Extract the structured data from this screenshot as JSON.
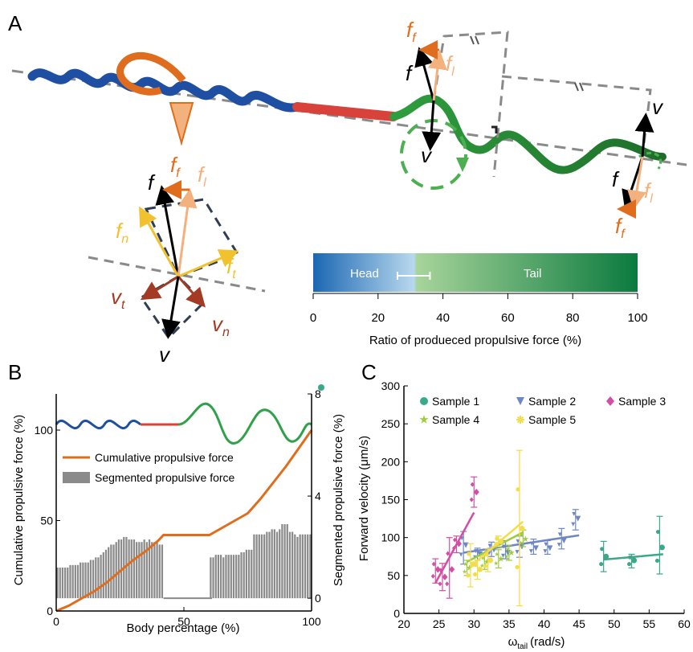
{
  "panels": {
    "a": "A",
    "b": "B",
    "c": "C"
  },
  "colors": {
    "orange": "#e06d1d",
    "light_orange": "#f3b17e",
    "yellow": "#f2c12e",
    "brown": "#a33a24",
    "blue": "#1f4fa3",
    "red": "#d8423a",
    "green": "#4caf50",
    "gray": "#8a8a8a"
  },
  "panel_a": {
    "labels": {
      "ff": "f",
      "ff_sub": "f",
      "fl": "f",
      "fl_sub": "l",
      "f": "f",
      "v": "v",
      "fn": "f",
      "fn_sub": "n",
      "ft": "f",
      "ft_sub": "t",
      "vt": "v",
      "vt_sub": "t",
      "vn": "v",
      "vn_sub": "n"
    },
    "colorbar": {
      "head_label": "Head",
      "tail_label": "Tail",
      "ticks": [
        "0",
        "20",
        "40",
        "60",
        "80",
        "100"
      ],
      "xlabel": "Ratio of produeced propulsive force (%)",
      "boundary": 31,
      "error": [
        26,
        36
      ]
    }
  },
  "chart_data": [
    {
      "type": "line",
      "panel": "B",
      "xlabel": "Body percentage (%)",
      "ylabel": "Cumulative propulsive force (%)",
      "y2label": "Segmented propulsive force (%)",
      "xlim": [
        0,
        100
      ],
      "ylim": [
        0,
        120
      ],
      "y2lim": [
        -0.5,
        8
      ],
      "xticks": [
        "0",
        "50",
        "100"
      ],
      "yticks": [
        "0",
        "50",
        "100"
      ],
      "y2ticks": [
        "0",
        "4",
        "8"
      ],
      "legend": [
        "Cumulative propulsive force",
        "Segmented propulsive force"
      ],
      "legend_position": "center-left",
      "series": [
        {
          "name": "Cumulative propulsive force",
          "x": [
            0,
            5,
            10,
            15,
            20,
            25,
            30,
            35,
            40,
            42,
            45,
            50,
            55,
            60,
            65,
            70,
            75,
            80,
            85,
            90,
            95,
            100
          ],
          "values": [
            0,
            3,
            7,
            11,
            16,
            22,
            28,
            33,
            39,
            42,
            42,
            42,
            42,
            42,
            46,
            50,
            54,
            62,
            71,
            80,
            90,
            100
          ]
        },
        {
          "name": "Segmented propulsive force",
          "x": [
            1,
            2,
            3,
            4,
            5,
            6,
            7,
            8,
            9,
            10,
            11,
            12,
            13,
            14,
            15,
            16,
            17,
            18,
            19,
            20,
            21,
            22,
            23,
            24,
            25,
            26,
            27,
            28,
            29,
            30,
            31,
            32,
            33,
            34,
            35,
            36,
            37,
            38,
            39,
            40,
            41,
            42,
            61,
            62,
            63,
            64,
            65,
            66,
            67,
            68,
            69,
            70,
            71,
            72,
            73,
            74,
            75,
            76,
            77,
            78,
            79,
            80,
            81,
            82,
            83,
            84,
            85,
            86,
            87,
            88,
            89,
            90,
            91,
            92,
            93,
            94,
            95,
            96,
            97,
            98,
            99,
            100
          ],
          "values": [
            1.2,
            1.2,
            1.2,
            1.2,
            1.2,
            1.3,
            1.3,
            1.3,
            1.3,
            1.4,
            1.4,
            1.4,
            1.4,
            1.5,
            1.5,
            1.6,
            1.6,
            1.7,
            1.8,
            1.9,
            2.0,
            2.1,
            2.1,
            2.2,
            2.3,
            2.3,
            2.4,
            2.4,
            2.3,
            2.3,
            2.3,
            2.2,
            2.2,
            2.2,
            2.3,
            2.2,
            2.3,
            2.2,
            2.2,
            2.2,
            2.1,
            2.1,
            1.6,
            1.6,
            1.7,
            1.7,
            1.7,
            1.6,
            1.7,
            1.7,
            1.7,
            1.7,
            1.7,
            1.7,
            1.8,
            1.8,
            1.9,
            1.9,
            1.9,
            2.5,
            2.5,
            2.5,
            2.5,
            2.5,
            2.6,
            2.6,
            2.7,
            2.7,
            2.6,
            2.7,
            2.9,
            2.9,
            2.9,
            2.6,
            2.6,
            2.5,
            2.4,
            2.5,
            2.5,
            2.5,
            2.5,
            2.5
          ]
        }
      ]
    },
    {
      "type": "scatter",
      "panel": "C",
      "xlabel": "ω",
      "xlabel_sub": "tail",
      "xlabel_unit": "(rad/s)",
      "ylabel": "Forward velocity (μm/s)",
      "xlim": [
        20,
        60
      ],
      "ylim": [
        0,
        300
      ],
      "xticks": [
        "20",
        "25",
        "30",
        "35",
        "40",
        "45",
        "50",
        "55",
        "60"
      ],
      "yticks": [
        "0",
        "50",
        "100",
        "150",
        "200",
        "250",
        "300"
      ],
      "legend_position": "top",
      "series": [
        {
          "name": "Sample 1",
          "color": "#3aa889",
          "marker": "circle",
          "x": [
            48.5,
            52.5,
            56.5
          ],
          "values": [
            75,
            70,
            87
          ],
          "err": [
            [
              55,
              95
            ],
            [
              60,
              78
            ],
            [
              52,
              128
            ]
          ],
          "fit": [
            [
              48.5,
              71
            ],
            [
              57,
              78
            ]
          ]
        },
        {
          "name": "Sample 2",
          "color": "#6e87c4",
          "marker": "triangle",
          "x": [
            28.5,
            30.5,
            32.5,
            34.5,
            36.5,
            38.5,
            40.5,
            42.5,
            44.5
          ],
          "values": [
            90,
            78,
            84,
            80,
            88,
            86,
            86,
            96,
            125
          ],
          "err": [
            [
              65,
              108
            ],
            [
              70,
              86
            ],
            [
              75,
              94
            ],
            [
              72,
              96
            ],
            [
              74,
              102
            ],
            [
              78,
              98
            ],
            [
              78,
              96
            ],
            [
              85,
              112
            ],
            [
              110,
              137
            ]
          ],
          "fit": [
            [
              28.5,
              80
            ],
            [
              45,
              103
            ]
          ]
        },
        {
          "name": "Sample 3",
          "color": "#d14fa5",
          "marker": "diamond",
          "x": [
            24.5,
            25.5,
            26.5,
            27.5,
            30
          ],
          "values": [
            58,
            48,
            58,
            92,
            160
          ],
          "err": [
            [
              40,
              72
            ],
            [
              30,
              66
            ],
            [
              20,
              100
            ],
            [
              80,
              102
            ],
            [
              140,
              180
            ]
          ],
          "fit": [
            [
              24.5,
              40
            ],
            [
              30,
              133
            ]
          ]
        },
        {
          "name": "Sample 4",
          "color": "#9ccc3a",
          "marker": "star",
          "x": [
            29,
            31.5,
            33.5,
            35,
            37
          ],
          "values": [
            60,
            68,
            72,
            80,
            98
          ],
          "err": [
            [
              50,
              70
            ],
            [
              58,
              78
            ],
            [
              60,
              84
            ],
            [
              70,
              90
            ],
            [
              88,
              110
            ]
          ],
          "fit": [
            [
              29,
              68
            ],
            [
              37,
              107
            ]
          ]
        },
        {
          "name": "Sample 5",
          "color": "#f2dd4a",
          "marker": "asterisk",
          "x": [
            29.5,
            30.5,
            32,
            33.5,
            36.5
          ],
          "values": [
            65,
            58,
            70,
            95,
            112
          ],
          "err": [
            [
              35,
              92
            ],
            [
              45,
              70
            ],
            [
              55,
              85
            ],
            [
              88,
              102
            ],
            [
              10,
              215
            ]
          ],
          "fit": [
            [
              29.5,
              62
            ],
            [
              37,
              121
            ]
          ]
        }
      ]
    }
  ]
}
